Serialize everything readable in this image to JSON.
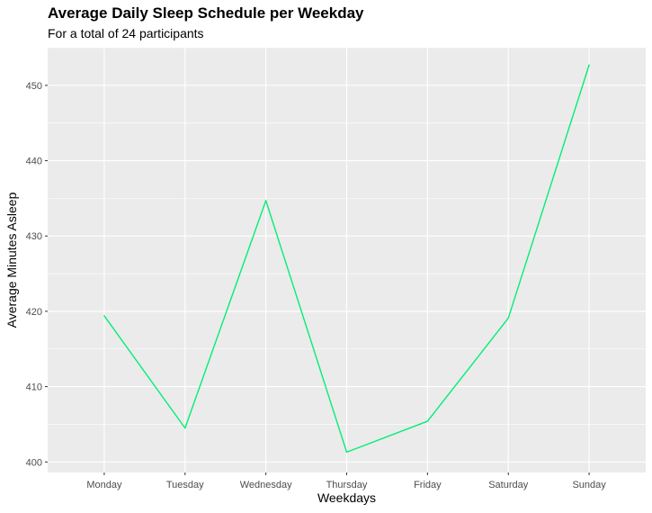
{
  "chart_data": {
    "type": "line",
    "title": "Average Daily Sleep Schedule per Weekday",
    "subtitle": "For a total of 24 participants",
    "xlabel": "Weekdays",
    "ylabel": "Average Minutes Asleep",
    "categories": [
      "Monday",
      "Tuesday",
      "Wednesday",
      "Thursday",
      "Friday",
      "Saturday",
      "Sunday"
    ],
    "series": [
      {
        "values": [
          419.4,
          404.5,
          434.7,
          401.3,
          405.4,
          419.1,
          452.7
        ]
      }
    ],
    "ylim": [
      398.6,
      455.0
    ],
    "yticks": [
      400,
      410,
      420,
      430,
      440,
      450
    ],
    "grid": true,
    "colors": {
      "line": "#00EE76",
      "panel": "#EBEBEB",
      "grid": "#FFFFFF"
    }
  }
}
